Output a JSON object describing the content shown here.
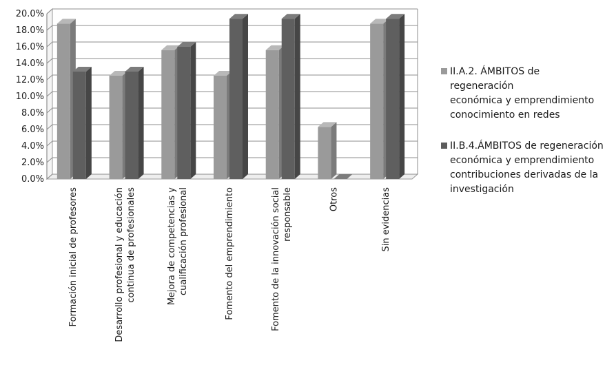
{
  "chart_data": {
    "type": "bar",
    "title": "",
    "xlabel": "",
    "ylabel": "",
    "ylim": [
      0,
      20
    ],
    "y_ticks": [
      "0.0%",
      "2.0%",
      "4.0%",
      "6.0%",
      "8.0%",
      "10.0%",
      "12.0%",
      "14.0%",
      "16.0%",
      "18.0%",
      "20.0%"
    ],
    "grid": true,
    "legend_position": "right",
    "categories": [
      "Formación inicial de profesores",
      "Desarrollo profesional y educación\ncontinua de profesionales",
      "Mejora de competencias y\ncualificación profesional",
      "Fomento del emprendimiento",
      "Fomento de la innovación social\nresponsable",
      "Otros",
      "Sin evidencias"
    ],
    "series": [
      {
        "name": "II.A.2. ÁMBITOS de regeneración\neconómica y emprendimiento\nconocimiento en redes",
        "color": "#9a9a9a",
        "values": [
          18.8,
          12.5,
          15.6,
          12.5,
          15.6,
          6.3,
          18.8
        ]
      },
      {
        "name": "II.B.4.ÁMBITOS de regeneración\neconómica y emprendimiento\ncontribuciones derivadas de la\ninvestigación",
        "color": "#5c5c5c",
        "values": [
          13.0,
          13.0,
          16.0,
          19.4,
          19.4,
          0.0,
          19.4
        ]
      }
    ]
  }
}
